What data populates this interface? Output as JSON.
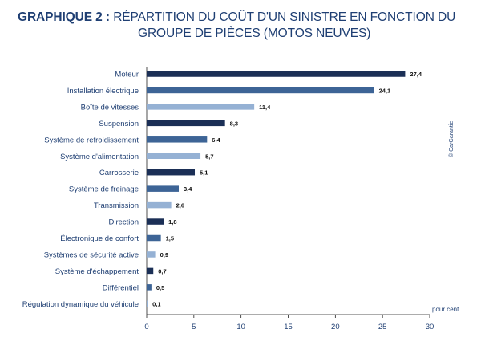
{
  "title": {
    "label": "GRAPHIQUE  2 :",
    "line1": "RÉPARTITION DU COÛT D'UN SINISTRE EN FONCTION DU",
    "line2": "GROUPE DE PIÈCES (MOTOS NEUVES)"
  },
  "copyright": "© CarGarantie",
  "chart_data": {
    "type": "bar",
    "orientation": "horizontal",
    "categories": [
      "Moteur",
      "Installation électrique",
      "Boîte de vitesses",
      "Suspension",
      "Système de refroidissement",
      "Système d'alimentation",
      "Carrosserie",
      "Système de freinage",
      "Transmission",
      "Direction",
      "Électronique de confort",
      "Systèmes de sécurité active",
      "Système d'échappement",
      "Différentiel",
      "Régulation dynamique du véhicule"
    ],
    "values": [
      27.4,
      24.1,
      11.4,
      8.3,
      6.4,
      5.7,
      5.1,
      3.4,
      2.6,
      1.8,
      1.5,
      0.9,
      0.7,
      0.5,
      0.1
    ],
    "value_labels": [
      "27,4",
      "24,1",
      "11,4",
      "8,3",
      "6,4",
      "5,7",
      "5,1",
      "3,4",
      "2,6",
      "1,8",
      "1,5",
      "0,9",
      "0,7",
      "0,5",
      "0,1"
    ],
    "bar_colors": [
      "#1b2f56",
      "#3d6496",
      "#95b1d4",
      "#1b2f56",
      "#3d6496",
      "#95b1d4",
      "#1b2f56",
      "#3d6496",
      "#95b1d4",
      "#1b2f56",
      "#3d6496",
      "#95b1d4",
      "#1b2f56",
      "#3d6496",
      "#95b1d4"
    ],
    "x_ticks": [
      "0",
      "5",
      "10",
      "15",
      "20",
      "25",
      "30"
    ],
    "xlim": [
      0,
      30
    ],
    "xlabel": "pour cent",
    "grid": false
  }
}
